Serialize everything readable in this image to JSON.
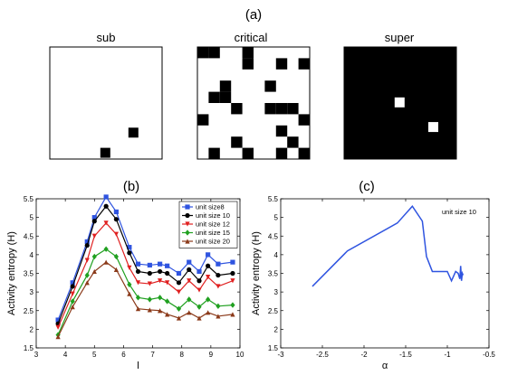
{
  "panel_a": {
    "label": "(a)",
    "grids": [
      {
        "title": "sub",
        "background": "#ffffff",
        "cell_color": "#000000",
        "cells_on": [
          [
            0.7,
            0.72
          ],
          [
            0.45,
            0.9
          ]
        ]
      },
      {
        "title": "critical",
        "background": "#ffffff",
        "cell_color": "#000000",
        "cells_on": [
          [
            0.0,
            0.0
          ],
          [
            0.1,
            0.0
          ],
          [
            0.4,
            0.0
          ],
          [
            0.4,
            0.1
          ],
          [
            0.7,
            0.1
          ],
          [
            0.9,
            0.1
          ],
          [
            0.6,
            0.3
          ],
          [
            0.2,
            0.3
          ],
          [
            0.2,
            0.4
          ],
          [
            0.1,
            0.4
          ],
          [
            0.3,
            0.5
          ],
          [
            0.6,
            0.5
          ],
          [
            0.7,
            0.5
          ],
          [
            0.8,
            0.5
          ],
          [
            0.9,
            0.6
          ],
          [
            0.0,
            0.6
          ],
          [
            0.7,
            0.7
          ],
          [
            0.8,
            0.8
          ],
          [
            0.3,
            0.8
          ],
          [
            0.1,
            0.9
          ],
          [
            0.4,
            0.9
          ],
          [
            0.7,
            0.9
          ],
          [
            0.9,
            0.9
          ]
        ]
      },
      {
        "title": "super",
        "background": "#000000",
        "cell_color": "#ffffff",
        "cells_on": [
          [
            0.45,
            0.45
          ],
          [
            0.75,
            0.67
          ]
        ]
      }
    ]
  },
  "chart_data": [
    {
      "type": "line",
      "panel_label": "(b)",
      "title": "",
      "xlabel": "l",
      "ylabel": "Activity entropy (H)",
      "xlim": [
        3,
        10
      ],
      "ylim": [
        1.5,
        5.5
      ],
      "xticks": [
        "3",
        "4",
        "5",
        "6",
        "7",
        "8",
        "9",
        "10"
      ],
      "yticks": [
        "1.5",
        "2",
        "2.5",
        "3",
        "3.5",
        "4",
        "4.5",
        "5",
        "5.5"
      ],
      "legend_position": "top-right",
      "x": [
        3.75,
        4.25,
        4.75,
        5.0,
        5.4,
        5.75,
        6.2,
        6.5,
        6.9,
        7.25,
        7.5,
        7.9,
        8.25,
        8.6,
        8.9,
        9.25,
        9.75
      ],
      "series": [
        {
          "name": "unit size8",
          "color": "#2f54e0",
          "marker": "square",
          "values": [
            2.25,
            3.25,
            4.35,
            5.0,
            5.55,
            5.15,
            4.2,
            3.75,
            3.72,
            3.75,
            3.7,
            3.5,
            3.8,
            3.55,
            4.0,
            3.75,
            3.8
          ]
        },
        {
          "name": "unit size 10",
          "color": "#000000",
          "marker": "circle",
          "values": [
            2.15,
            3.15,
            4.25,
            4.9,
            5.3,
            4.95,
            4.05,
            3.55,
            3.5,
            3.55,
            3.5,
            3.25,
            3.6,
            3.3,
            3.7,
            3.45,
            3.5
          ]
        },
        {
          "name": "unit size 12",
          "color": "#e02020",
          "marker": "triangle-down",
          "values": [
            2.05,
            2.95,
            3.85,
            4.5,
            4.85,
            4.55,
            3.65,
            3.25,
            3.22,
            3.3,
            3.25,
            3.0,
            3.3,
            3.05,
            3.4,
            3.15,
            3.3
          ]
        },
        {
          "name": "unit size 15",
          "color": "#20a020",
          "marker": "diamond",
          "values": [
            1.85,
            2.75,
            3.45,
            3.95,
            4.15,
            3.95,
            3.2,
            2.85,
            2.8,
            2.85,
            2.75,
            2.55,
            2.8,
            2.6,
            2.8,
            2.62,
            2.65
          ]
        },
        {
          "name": "unit size 20",
          "color": "#8b3a1a",
          "marker": "triangle-up",
          "values": [
            1.8,
            2.6,
            3.25,
            3.55,
            3.8,
            3.6,
            2.95,
            2.55,
            2.52,
            2.5,
            2.4,
            2.3,
            2.45,
            2.3,
            2.45,
            2.35,
            2.4
          ]
        }
      ]
    },
    {
      "type": "line",
      "panel_label": "(c)",
      "title": "",
      "xlabel": "α",
      "ylabel": "Activity entropy (H)",
      "xlim": [
        -3,
        -0.5
      ],
      "ylim": [
        1.5,
        5.5
      ],
      "xticks": [
        "-3",
        "-2.5",
        "-2",
        "-1.5",
        "-1",
        "-0.5"
      ],
      "yticks": [
        "1.5",
        "2",
        "2.5",
        "3",
        "3.5",
        "4",
        "4.5",
        "5",
        "5.5"
      ],
      "annotation": "unit size 10",
      "series": [
        {
          "name": "",
          "color": "#2f54e0",
          "x": [
            -2.62,
            -2.2,
            -1.6,
            -1.42,
            -1.3,
            -1.25,
            -1.18,
            -1.0,
            -0.95,
            -0.9,
            -0.87,
            -0.85,
            -0.84,
            -0.83,
            -0.82,
            -0.81
          ],
          "y": [
            3.15,
            4.1,
            4.85,
            5.3,
            4.9,
            3.95,
            3.55,
            3.55,
            3.3,
            3.55,
            3.5,
            3.35,
            3.7,
            3.3,
            3.5,
            3.45
          ]
        }
      ]
    }
  ]
}
